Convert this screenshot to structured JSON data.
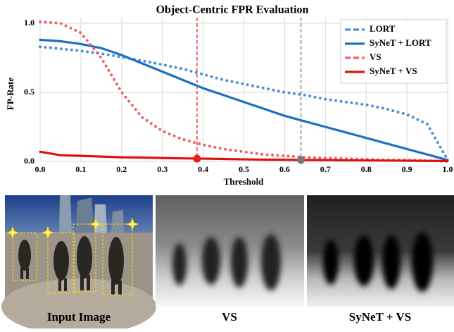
{
  "chart_data": {
    "type": "line",
    "title": "Object-Centric FPR Evaluation",
    "x_label": "Threshold",
    "y_label": "FP-Rate",
    "x": [
      0,
      0.05,
      0.1,
      0.15,
      0.2,
      0.25,
      0.3,
      0.35,
      0.4,
      0.45,
      0.5,
      0.55,
      0.6,
      0.65,
      0.7,
      0.75,
      0.8,
      0.85,
      0.9,
      0.95,
      1.0
    ],
    "series": [
      {
        "name": "LORT",
        "color": "#4a90d9",
        "style": "dotted",
        "values": [
          0.83,
          0.815,
          0.8,
          0.78,
          0.755,
          0.73,
          0.7,
          0.67,
          0.63,
          0.59,
          0.56,
          0.53,
          0.5,
          0.48,
          0.45,
          0.43,
          0.41,
          0.38,
          0.34,
          0.27,
          0.01
        ]
      },
      {
        "name": "SyNeT + LORT",
        "color": "#1f6fbf",
        "style": "solid",
        "values": [
          0.88,
          0.87,
          0.85,
          0.82,
          0.77,
          0.71,
          0.65,
          0.59,
          0.53,
          0.48,
          0.43,
          0.38,
          0.33,
          0.29,
          0.25,
          0.21,
          0.17,
          0.13,
          0.09,
          0.05,
          0.01
        ]
      },
      {
        "name": "VS",
        "color": "#f06060",
        "style": "dotted",
        "values": [
          1.01,
          1.0,
          0.93,
          0.75,
          0.5,
          0.32,
          0.22,
          0.16,
          0.12,
          0.09,
          0.07,
          0.05,
          0.04,
          0.03,
          0.025,
          0.02,
          0.015,
          0.01,
          0.01,
          0.005,
          0
        ]
      },
      {
        "name": "SyNeT + VS",
        "color": "#e01010",
        "style": "solid",
        "values": [
          0.07,
          0.045,
          0.04,
          0.035,
          0.03,
          0.028,
          0.025,
          0.022,
          0.02,
          0.018,
          0.015,
          0.013,
          0.012,
          0.01,
          0.01,
          0.008,
          0.007,
          0.006,
          0.005,
          0.004,
          0.003
        ]
      }
    ],
    "thresholds": [
      {
        "x": 0.385,
        "y": 0.02,
        "color": "#e02020"
      },
      {
        "x": 0.64,
        "y": 0.01,
        "color": "#777777"
      }
    ],
    "xlim": [
      0,
      1
    ],
    "ylim": [
      0,
      1
    ],
    "xticks": [
      {
        "value": 0,
        "label": "0.0"
      },
      0.1,
      0.2,
      0.3,
      0.4,
      0.5,
      0.6,
      0.7,
      0.8,
      0.9,
      {
        "value": 1,
        "label": "1.0"
      }
    ],
    "yticks": [
      {
        "value": 0,
        "label": "0.0"
      },
      0.5,
      {
        "value": 1,
        "label": "1.0"
      }
    ],
    "grid": true,
    "legend": "upper right"
  },
  "panels": [
    {
      "caption": "Input Image"
    },
    {
      "caption": "VS"
    },
    {
      "caption": "SyNeT + VS"
    }
  ]
}
